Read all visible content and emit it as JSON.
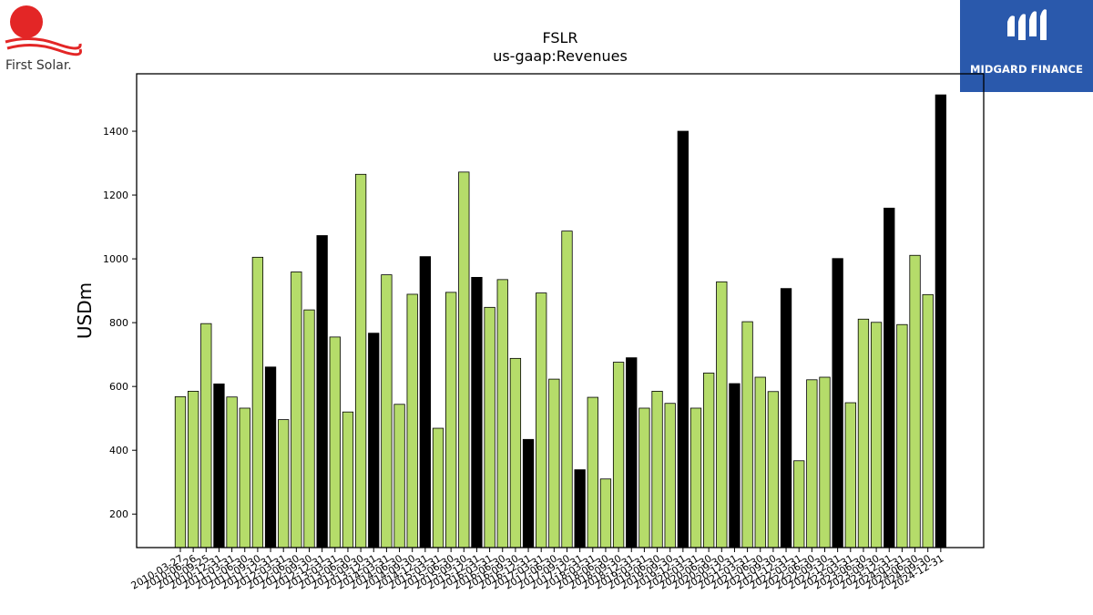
{
  "logos": {
    "left_text": "First Solar.",
    "right_text": "MIDGARD FINANCE",
    "left_icon": "sun-wave-icon",
    "right_icon": "midgard-m-icon",
    "right_bg": "#2a59ac",
    "left_red": "#e32626"
  },
  "chart_data": {
    "type": "bar",
    "title": "FSLR",
    "subtitle": "us-gaap:Revenues",
    "xlabel": "",
    "ylabel": "USDm",
    "ylim": [
      95,
      1580
    ],
    "yticks": [
      200,
      400,
      600,
      800,
      1000,
      1200,
      1400
    ],
    "grid": false,
    "colors": {
      "quarterly": "#b5dc6a",
      "annual": "#000000",
      "edge": "#000000"
    },
    "categories": [
      "2010-03-27",
      "2010-06-26",
      "2010-09-25",
      "2010-12-31",
      "2011-03-31",
      "2011-06-30",
      "2011-09-30",
      "2011-12-31",
      "2012-03-31",
      "2012-06-30",
      "2012-09-30",
      "2012-12-31",
      "2013-03-31",
      "2013-06-30",
      "2013-09-30",
      "2013-12-31",
      "2014-03-31",
      "2014-06-30",
      "2014-09-30",
      "2014-12-31",
      "2015-03-31",
      "2015-06-30",
      "2015-09-30",
      "2015-12-31",
      "2016-03-31",
      "2016-06-30",
      "2016-09-30",
      "2016-12-31",
      "2017-03-31",
      "2017-06-30",
      "2017-09-30",
      "2017-12-31",
      "2018-03-31",
      "2018-06-30",
      "2018-09-30",
      "2018-12-31",
      "2019-03-31",
      "2019-06-30",
      "2019-09-30",
      "2019-12-31",
      "2020-03-31",
      "2020-06-30",
      "2020-09-30",
      "2020-12-31",
      "2021-03-31",
      "2021-06-30",
      "2021-09-30",
      "2021-12-31",
      "2022-03-31",
      "2022-06-30",
      "2022-09-30",
      "2022-12-31",
      "2023-03-31",
      "2023-06-30",
      "2023-09-30",
      "2023-12-31",
      "2024-03-31",
      "2024-06-30",
      "2024-09-30",
      "2024-12-31"
    ],
    "values": [
      568,
      585,
      797,
      608,
      567,
      532,
      1005,
      661,
      496,
      959,
      840,
      1073,
      755,
      520,
      1265,
      767,
      950,
      544,
      889,
      1007,
      469,
      895,
      1272,
      942,
      848,
      935,
      688,
      434,
      893,
      623,
      1087,
      339,
      566,
      310,
      676,
      690,
      532,
      585,
      547,
      1400,
      532,
      642,
      928,
      609,
      803,
      629,
      584,
      907,
      367,
      621,
      629,
      1001,
      549,
      811,
      801,
      1159,
      794,
      1011,
      888,
      1514
    ],
    "annual_flags": [
      0,
      0,
      0,
      1,
      0,
      0,
      0,
      1,
      0,
      0,
      0,
      1,
      0,
      0,
      0,
      1,
      0,
      0,
      0,
      1,
      0,
      0,
      0,
      1,
      0,
      0,
      0,
      1,
      0,
      0,
      0,
      1,
      0,
      0,
      0,
      1,
      0,
      0,
      0,
      1,
      0,
      0,
      0,
      1,
      0,
      0,
      0,
      1,
      0,
      0,
      0,
      1,
      0,
      0,
      0,
      1,
      0,
      0,
      0,
      1
    ]
  }
}
